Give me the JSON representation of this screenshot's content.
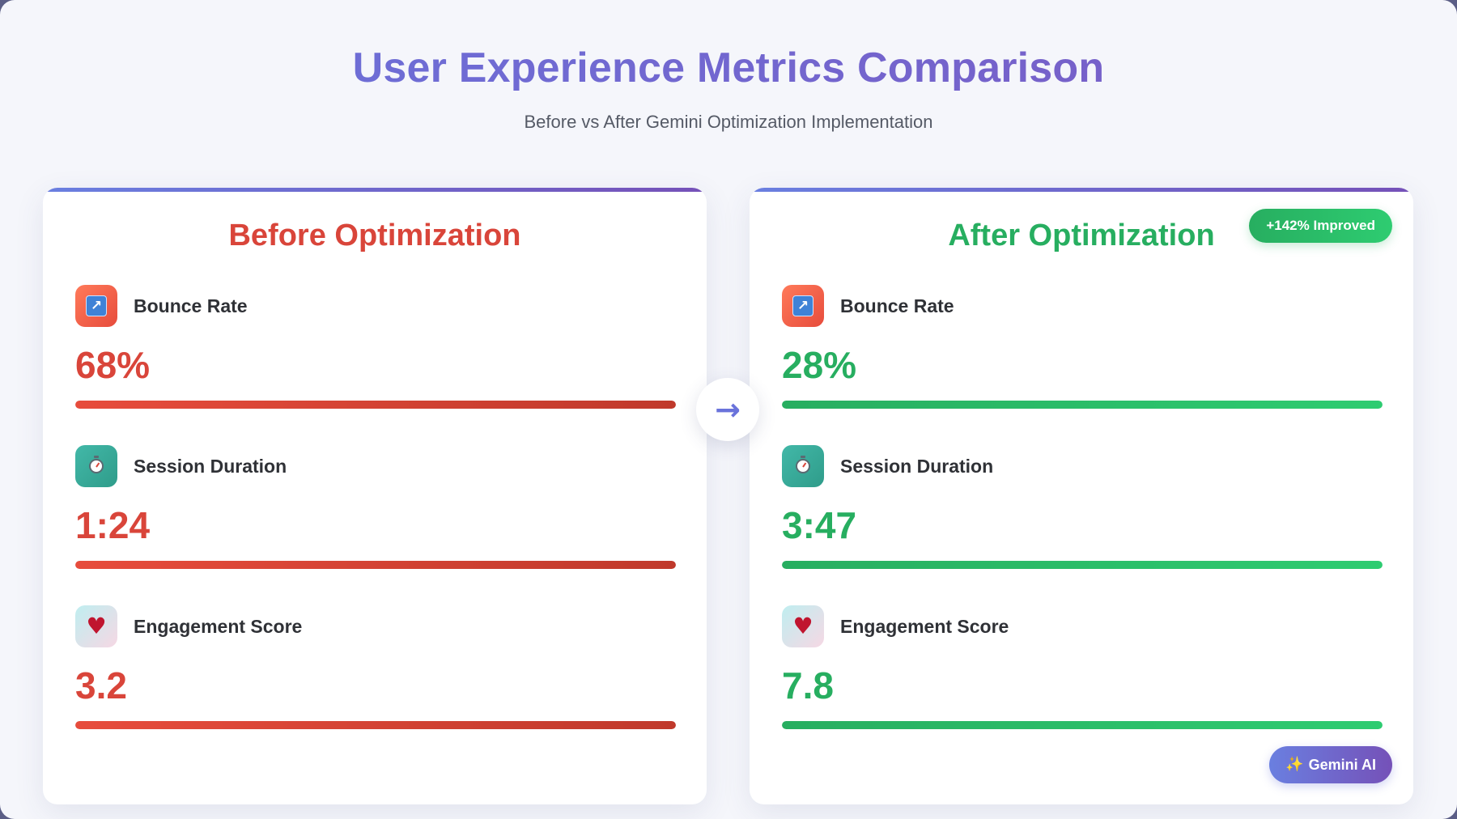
{
  "header": {
    "title": "User Experience Metrics Comparison",
    "subtitle": "Before vs After Gemini Optimization Implementation"
  },
  "colors": {
    "title_gradient": [
      "#6a73db",
      "#7a5bc4"
    ],
    "before_accent": "#d9453a",
    "after_accent": "#27ae60",
    "panel_top_border": [
      "#6a7fe0",
      "#7551b8"
    ]
  },
  "before": {
    "title": "Before Optimization",
    "metrics": [
      {
        "icon": "bounce-rate-icon",
        "label": "Bounce Rate",
        "value": "68%",
        "bar_fill": 1.0
      },
      {
        "icon": "stopwatch-icon",
        "label": "Session Duration",
        "value": "1:24",
        "bar_fill": 1.0
      },
      {
        "icon": "heart-icon",
        "label": "Engagement Score",
        "value": "3.2",
        "bar_fill": 1.0
      }
    ]
  },
  "after": {
    "title": "After Optimization",
    "badge": "+142% Improved",
    "metrics": [
      {
        "icon": "bounce-rate-icon",
        "label": "Bounce Rate",
        "value": "28%",
        "bar_fill": 1.0
      },
      {
        "icon": "stopwatch-icon",
        "label": "Session Duration",
        "value": "3:47",
        "bar_fill": 1.0
      },
      {
        "icon": "heart-icon",
        "label": "Engagement Score",
        "value": "7.8",
        "bar_fill": 1.0
      }
    ],
    "footer_badge": "Gemini AI"
  },
  "divider": {
    "icon": "right-arrow-icon"
  }
}
